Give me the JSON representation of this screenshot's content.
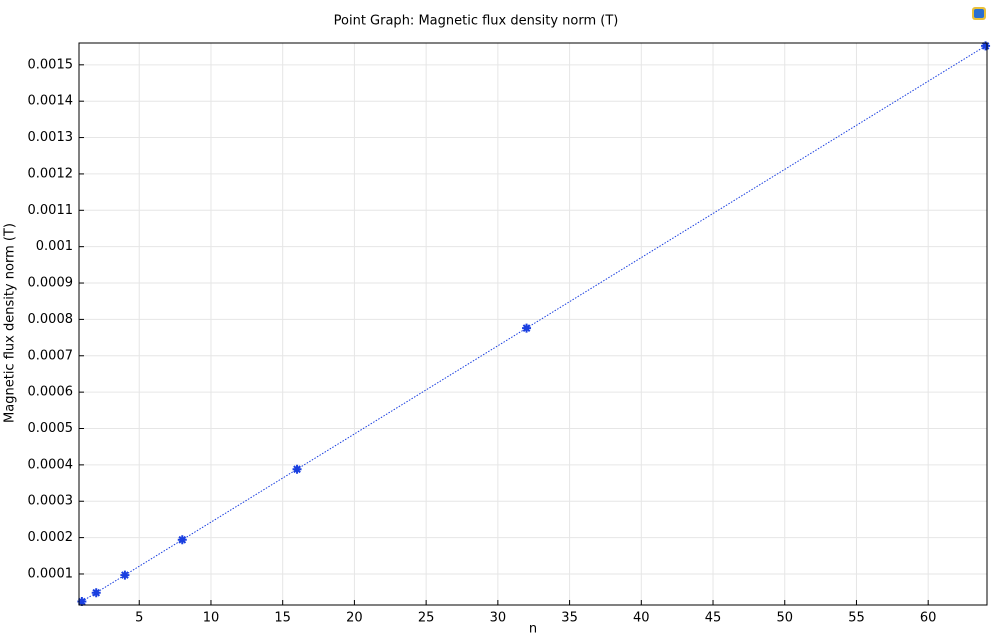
{
  "chart_data": {
    "type": "line",
    "title": "Point Graph: Magnetic flux density norm (T)",
    "x_label": "n",
    "y_label": "Magnetic flux density norm (T)",
    "x": [
      1,
      2,
      4,
      8,
      16,
      32,
      64
    ],
    "values": [
      2.42e-05,
      4.85e-05,
      9.7e-05,
      0.000194,
      0.000388,
      0.000776,
      0.001552
    ],
    "color": "#1a3fe0",
    "xlim": [
      0.8,
      64.1
    ],
    "ylim": [
      1.47e-05,
      0.00156
    ],
    "xticks": [
      5,
      10,
      15,
      20,
      25,
      30,
      35,
      40,
      45,
      50,
      55,
      60
    ],
    "yticks": [
      0.0001,
      0.0002,
      0.0003,
      0.0004,
      0.0005,
      0.0006,
      0.0007,
      0.0008,
      0.0009,
      0.001,
      0.0011,
      0.0012,
      0.0013,
      0.0014,
      0.0015
    ],
    "grid": true
  }
}
